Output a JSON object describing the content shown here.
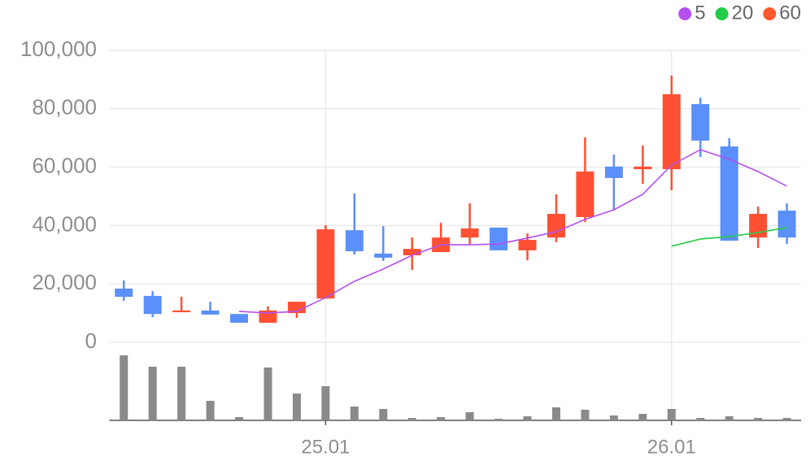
{
  "chart_data": {
    "type": "candlestick",
    "categories": [
      null,
      null,
      null,
      null,
      null,
      null,
      null,
      "25.01",
      null,
      null,
      null,
      null,
      null,
      null,
      null,
      null,
      null,
      null,
      null,
      "26.01",
      null,
      null,
      null,
      null
    ],
    "open": [
      18400,
      15900,
      10300,
      10900,
      9700,
      6700,
      10000,
      15000,
      38400,
      30400,
      29800,
      30900,
      35900,
      39300,
      31500,
      35900,
      42900,
      60200,
      59300,
      59300,
      81600,
      67100,
      35900,
      45100
    ],
    "high": [
      21200,
      17500,
      15600,
      13900,
      9700,
      12300,
      13900,
      40100,
      51000,
      39800,
      35900,
      40900,
      47600,
      39300,
      37300,
      50700,
      70200,
      64300,
      67400,
      91400,
      83800,
      69900,
      46500,
      47600
    ],
    "low": [
      14200,
      8600,
      10300,
      9500,
      6700,
      6700,
      8400,
      15000,
      30100,
      27900,
      24800,
      30900,
      33700,
      31500,
      28100,
      34300,
      41200,
      45400,
      54300,
      52100,
      63500,
      34800,
      32300,
      33700
    ],
    "close": [
      15600,
      9700,
      10900,
      9500,
      6700,
      10900,
      13900,
      38700,
      31200,
      29000,
      32000,
      35900,
      39000,
      31500,
      35100,
      44000,
      58500,
      56300,
      60200,
      85000,
      69100,
      34800,
      44000,
      35900
    ],
    "up_color": "#ff5033",
    "down_color": "#5b8ff9",
    "series": [
      {
        "name": "5",
        "color": "#b44ff0",
        "values": [
          null,
          null,
          null,
          null,
          10600,
          10000,
          10600,
          15300,
          20900,
          25100,
          29800,
          33400,
          33400,
          33700,
          35700,
          37900,
          42100,
          45400,
          50700,
          60700,
          66000,
          62700,
          58500,
          53500
        ]
      },
      {
        "name": "20",
        "color": "#22cc44",
        "values": [
          null,
          null,
          null,
          null,
          null,
          null,
          null,
          null,
          null,
          null,
          null,
          null,
          null,
          null,
          null,
          null,
          null,
          null,
          null,
          32900,
          35400,
          36200,
          37600,
          39300
        ]
      },
      {
        "name": "60",
        "color": "#ff5a2e",
        "values": [
          null,
          null,
          null,
          null,
          null,
          null,
          null,
          null,
          null,
          null,
          null,
          null,
          null,
          null,
          null,
          null,
          null,
          null,
          null,
          null,
          null,
          null,
          null,
          null
        ]
      }
    ],
    "volume": [
      80,
      66,
      66,
      24,
      4,
      65,
      33,
      42,
      17,
      14,
      3,
      4,
      10,
      2,
      5,
      16,
      13,
      6,
      8,
      14,
      3,
      5,
      3,
      3
    ],
    "volume_color": "#8a8a8a",
    "volume_ylim": [
      0,
      80
    ],
    "ylim": [
      0,
      100000
    ],
    "yticks": [
      {
        "value": 0,
        "label": "0"
      },
      {
        "value": 20000,
        "label": "20,000"
      },
      {
        "value": 40000,
        "label": "40,000"
      },
      {
        "value": 60000,
        "label": "60,000"
      },
      {
        "value": 80000,
        "label": "80,000"
      },
      {
        "value": 100000,
        "label": "100,000"
      }
    ],
    "grid": true
  }
}
